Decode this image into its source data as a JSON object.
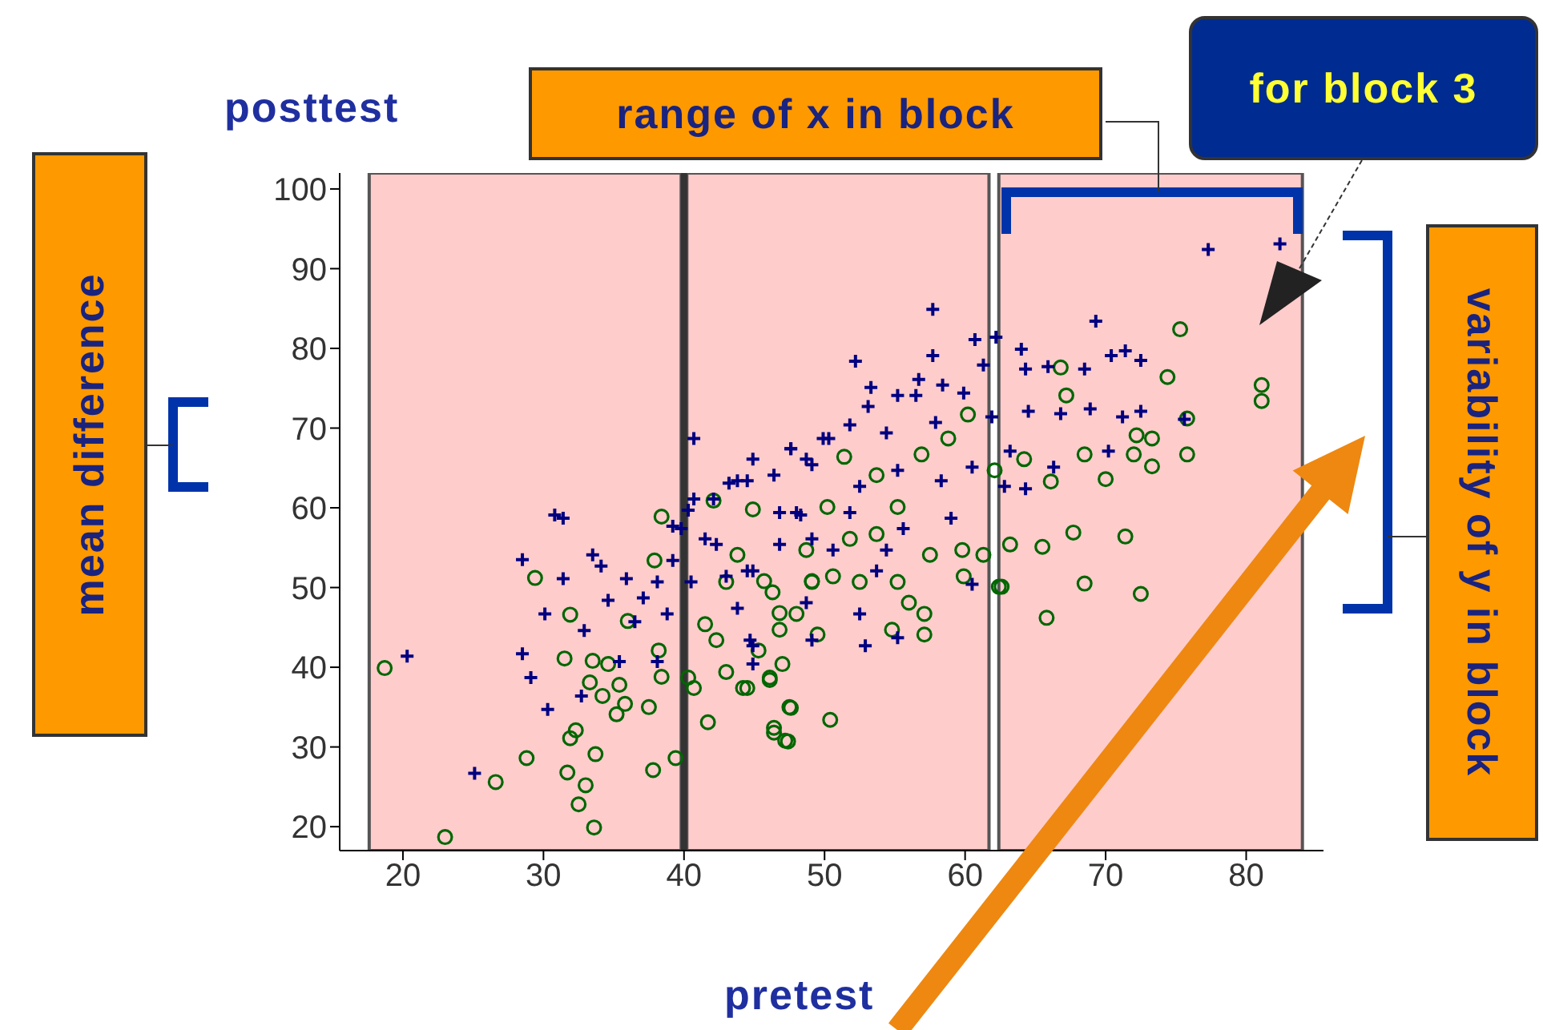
{
  "chart_data": {
    "type": "scatter",
    "xlabel": "pretest",
    "ylabel": "posttest",
    "xlim": [
      15.5,
      85.5
    ],
    "xticks": [
      20,
      30,
      40,
      50,
      60,
      70,
      80
    ],
    "ylim": [
      17,
      102
    ],
    "yticks": [
      20,
      30,
      40,
      50,
      60,
      70,
      80,
      90,
      100
    ],
    "annotations": [
      "range of x in block",
      "for block 3",
      "mean difference",
      "variability of y in block"
    ],
    "bands": [
      {
        "axis": "x",
        "from": 17.6,
        "to": 39.8,
        "color": "#ffcccc"
      },
      {
        "axis": "x",
        "from": 40.2,
        "to": 61.7,
        "color": "#ffcccc"
      },
      {
        "axis": "x",
        "from": 62.4,
        "to": 84,
        "color": "#ffcccc"
      }
    ],
    "ref_lines": [
      {
        "axis": "x",
        "value": 40,
        "color": "#333333"
      }
    ],
    "series": [
      {
        "color": "#006600",
        "marker": "circle",
        "x": [
          18.7,
          23.0,
          26.6,
          28.8,
          29.4,
          31.9,
          31.5,
          32.3,
          31.9,
          33.7,
          31.7,
          33.0,
          32.5,
          33.6,
          33.5,
          34.6,
          33.3,
          34.2,
          35.4,
          35.8,
          35.2,
          37.5,
          37.8,
          39.4,
          36.0,
          38.4,
          38.2,
          37.9,
          38.4,
          41.7,
          40.7,
          42.3,
          43.0,
          44.5,
          46.1,
          47.5,
          46.4,
          47.2,
          42.1,
          44.9,
          43.8,
          45.7,
          46.8,
          49.1,
          50.2,
          75.3,
          74.4,
          81.1,
          81.1,
          66.8,
          67.2,
          75.8,
          75.8,
          73.3,
          73.3,
          72.0,
          72.2,
          68.5,
          70.0,
          66.1,
          60.2,
          58.8,
          64.2,
          62.1,
          67.7,
          71.4,
          65.5,
          68.5,
          72.5,
          65.8,
          62.6,
          63.2,
          61.3,
          59.8,
          59.9,
          57.5,
          57.1,
          56.0,
          54.8,
          57.1,
          55.2,
          53.7,
          51.8,
          50.6,
          49.1,
          48.0,
          49.5,
          46.8,
          45.3,
          47.0,
          46.1,
          44.2,
          47.6,
          50.4,
          46.4,
          47.4,
          56.9,
          53.7,
          51.4,
          43.0,
          41.5,
          40.3,
          55.2,
          62.4,
          46.3,
          48.7,
          52.5
        ],
        "values": [
          39.9,
          18.7,
          25.6,
          28.6,
          51.2,
          46.6,
          41.1,
          32.1,
          31.1,
          29.1,
          26.8,
          25.2,
          22.8,
          19.9,
          40.8,
          40.4,
          38.1,
          36.4,
          37.8,
          35.4,
          34.1,
          35.0,
          27.1,
          28.6,
          45.8,
          38.8,
          42.1,
          53.4,
          58.9,
          33.1,
          37.4,
          43.4,
          39.4,
          37.4,
          38.4,
          35.0,
          31.8,
          30.8,
          60.9,
          59.8,
          54.1,
          50.8,
          46.8,
          50.8,
          60.1,
          82.4,
          76.4,
          75.4,
          73.4,
          77.6,
          74.1,
          71.2,
          66.7,
          68.7,
          65.2,
          66.7,
          69.1,
          66.7,
          63.6,
          63.3,
          71.7,
          68.7,
          66.1,
          64.7,
          56.9,
          56.4,
          55.1,
          50.5,
          49.2,
          46.2,
          50.1,
          55.4,
          54.1,
          54.7,
          51.4,
          54.1,
          46.7,
          48.1,
          44.7,
          44.1,
          50.7,
          56.7,
          56.1,
          51.4,
          50.7,
          46.7,
          44.1,
          44.7,
          42.1,
          40.4,
          38.7,
          37.4,
          34.9,
          33.4,
          32.4,
          30.7,
          66.7,
          64.1,
          66.4,
          50.7,
          45.4,
          38.7,
          60.1,
          50.1,
          49.4,
          54.7,
          50.7
        ]
      },
      {
        "color": "#000080",
        "marker": "cross",
        "x": [
          20.3,
          28.5,
          29.1,
          30.3,
          25.1,
          30.8,
          31.4,
          28.5,
          31.4,
          30.1,
          32.9,
          32.7,
          33.5,
          34.1,
          35.4,
          34.6,
          35.9,
          36.5,
          37.1,
          38.1,
          38.8,
          39.2,
          39.2,
          38.1,
          40.7,
          40.3,
          40.5,
          41.5,
          42.3,
          43.2,
          44.5,
          43.0,
          44.5,
          44.9,
          46.4,
          47.6,
          48.7,
          46.8,
          48.3,
          46.8,
          49.1,
          49.9,
          77.3,
          82.4,
          69.3,
          57.7,
          60.7,
          62.2,
          64.0,
          64.3,
          65.9,
          68.5,
          70.4,
          71.4,
          72.5,
          52.2,
          57.7,
          61.3,
          56.7,
          58.4,
          53.3,
          53.1,
          55.2,
          56.5,
          59.9,
          64.5,
          66.8,
          68.9,
          71.2,
          72.5,
          75.6,
          61.9,
          51.8,
          54.4,
          57.9,
          50.3,
          47.6,
          44.9,
          70.2,
          66.3,
          60.5,
          63.2,
          62.8,
          64.3,
          58.3,
          55.2,
          52.5,
          49.1,
          43.8,
          42.1,
          48.0,
          51.8,
          55.6,
          59.0,
          50.6,
          54.4,
          53.7,
          60.5,
          44.9,
          44.7,
          44.9,
          52.9,
          55.2,
          49.1,
          40.7,
          39.8,
          43.8,
          48.7,
          52.5
        ],
        "values": [
          41.4,
          41.7,
          38.7,
          34.7,
          26.7,
          59.1,
          58.7,
          53.5,
          51.1,
          46.7,
          44.6,
          36.4,
          54.1,
          52.7,
          40.7,
          48.4,
          51.1,
          45.7,
          48.7,
          50.7,
          46.7,
          53.4,
          57.7,
          40.7,
          68.7,
          59.7,
          50.7,
          56.1,
          55.4,
          63.1,
          63.4,
          51.4,
          52.1,
          42.7,
          64.1,
          67.4,
          66.1,
          59.4,
          59.1,
          55.4,
          56.1,
          68.7,
          92.4,
          93.1,
          83.4,
          84.9,
          81.1,
          81.4,
          79.9,
          77.4,
          77.7,
          77.4,
          79.1,
          79.7,
          78.5,
          78.4,
          79.1,
          77.9,
          76.1,
          75.4,
          75.1,
          72.7,
          74.1,
          74.1,
          74.4,
          72.1,
          71.8,
          72.4,
          71.4,
          72.1,
          71.1,
          71.4,
          70.4,
          69.4,
          70.7,
          68.7,
          67.4,
          66.1,
          67.1,
          65.1,
          65.1,
          67.1,
          62.7,
          62.4,
          63.4,
          64.7,
          62.7,
          65.4,
          63.4,
          61.1,
          59.4,
          59.4,
          57.4,
          58.7,
          54.7,
          54.7,
          52.1,
          50.4,
          52.1,
          43.4,
          40.4,
          42.7,
          43.7,
          43.4,
          61.1,
          57.4,
          47.4,
          48.1,
          46.7
        ]
      }
    ]
  }
}
